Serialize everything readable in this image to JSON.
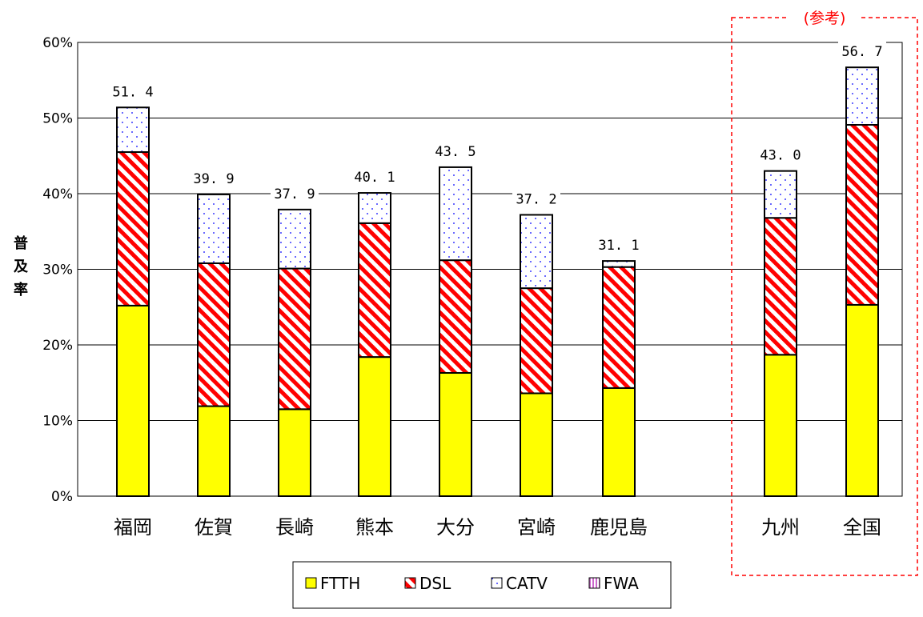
{
  "chart_data": {
    "type": "bar",
    "stacked": true,
    "categories": [
      "福岡",
      "佐賀",
      "長崎",
      "熊本",
      "大分",
      "宮崎",
      "鹿児島",
      "九州",
      "全国"
    ],
    "series": [
      {
        "name": "FTTH",
        "color": "#ffff00",
        "pattern": "solid",
        "values": [
          25.2,
          11.9,
          11.5,
          18.4,
          16.3,
          13.6,
          14.3,
          18.7,
          25.3
        ]
      },
      {
        "name": "DSL",
        "color": "#ff0000",
        "pattern": "diagonal-stripes",
        "values": [
          20.3,
          18.9,
          18.6,
          17.7,
          14.9,
          13.9,
          16.0,
          18.1,
          23.8
        ]
      },
      {
        "name": "CATV",
        "color": "#0000ff",
        "pattern": "dotted",
        "values": [
          5.9,
          9.1,
          7.8,
          4.0,
          12.3,
          9.7,
          0.8,
          6.2,
          7.6
        ]
      },
      {
        "name": "FWA",
        "color": "#cc66cc",
        "pattern": "vertical-stripes",
        "values": [
          0,
          0,
          0,
          0,
          0,
          0,
          0,
          0,
          0
        ]
      }
    ],
    "totals": [
      "51. 4",
      "39. 9",
      "37. 9",
      "40. 1",
      "43. 5",
      "37. 2",
      "31. 1",
      "43. 0",
      "56. 7"
    ],
    "ylabel": "普及率",
    "xlabel": "",
    "ylim": [
      0,
      60
    ],
    "yticks": [
      0,
      10,
      20,
      30,
      40,
      50,
      60
    ],
    "ytick_labels": [
      "0%",
      "10%",
      "20%",
      "30%",
      "40%",
      "50%",
      "60%"
    ],
    "grid": true,
    "legend_position": "bottom",
    "reference_group": {
      "label": "(参考)",
      "categories": [
        "九州",
        "全国"
      ],
      "border_color": "#ff0000"
    }
  }
}
